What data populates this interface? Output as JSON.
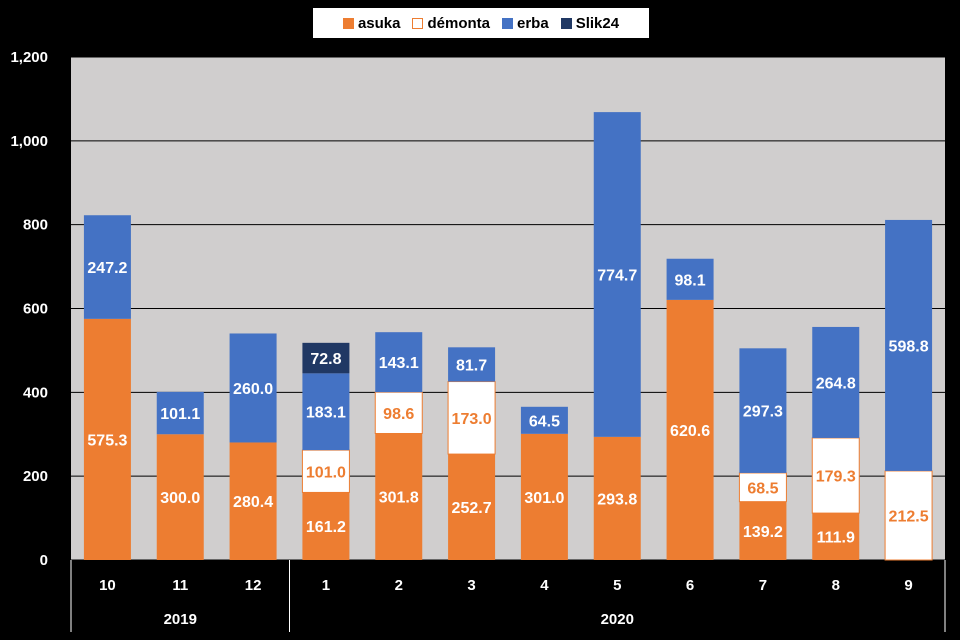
{
  "chart_data": {
    "type": "bar",
    "stacked": true,
    "categories": [
      "10",
      "11",
      "12",
      "1",
      "2",
      "3",
      "4",
      "5",
      "6",
      "7",
      "8",
      "9"
    ],
    "year_groups": [
      {
        "label": "2019",
        "categories": [
          "10",
          "11",
          "12"
        ]
      },
      {
        "label": "2020",
        "categories": [
          "1",
          "2",
          "3",
          "4",
          "5",
          "6",
          "7",
          "8",
          "9"
        ]
      }
    ],
    "series": [
      {
        "name": "asuka",
        "color": "#ED7D31",
        "values": [
          575.3,
          300.0,
          280.4,
          161.2,
          301.8,
          252.7,
          301.0,
          293.8,
          620.6,
          139.2,
          111.9,
          null
        ],
        "labels": [
          "575.3",
          "300.0",
          "280.4",
          "161.2",
          "301.8",
          "252.7",
          "301.0",
          "293.8",
          "620.6",
          "139.2",
          "111.9",
          ""
        ]
      },
      {
        "name": "démonta",
        "color": "#FFFFFF",
        "values": [
          null,
          null,
          null,
          101.0,
          98.6,
          173.0,
          null,
          null,
          null,
          68.5,
          179.3,
          212.5
        ],
        "labels": [
          "",
          "",
          "",
          "101.0",
          "98.6",
          "173.0",
          "",
          "",
          "",
          "68.5",
          "179.3",
          "212.5"
        ]
      },
      {
        "name": "erba",
        "color": "#4472C4",
        "values": [
          247.2,
          101.1,
          260.0,
          183.1,
          143.1,
          81.7,
          64.5,
          774.7,
          98.1,
          297.3,
          264.8,
          598.8
        ],
        "labels": [
          "247.2",
          "101.1",
          "260.0",
          "183.1",
          "143.1",
          "81.7",
          "64.5",
          "774.7",
          "98.1",
          "297.3",
          "264.8",
          "598.8"
        ]
      },
      {
        "name": "Slik24",
        "color": "#203864",
        "values": [
          null,
          null,
          null,
          72.8,
          null,
          null,
          null,
          null,
          null,
          null,
          null,
          null
        ],
        "labels": [
          "",
          "",
          "",
          "72.8",
          "",
          "",
          "",
          "",
          "",
          "",
          "",
          ""
        ]
      }
    ],
    "yticks": [
      "0",
      "200",
      "400",
      "600",
      "800",
      "1,000",
      "1,200"
    ],
    "ylim": [
      0,
      1200
    ],
    "grid": true,
    "legend_position": "top"
  }
}
